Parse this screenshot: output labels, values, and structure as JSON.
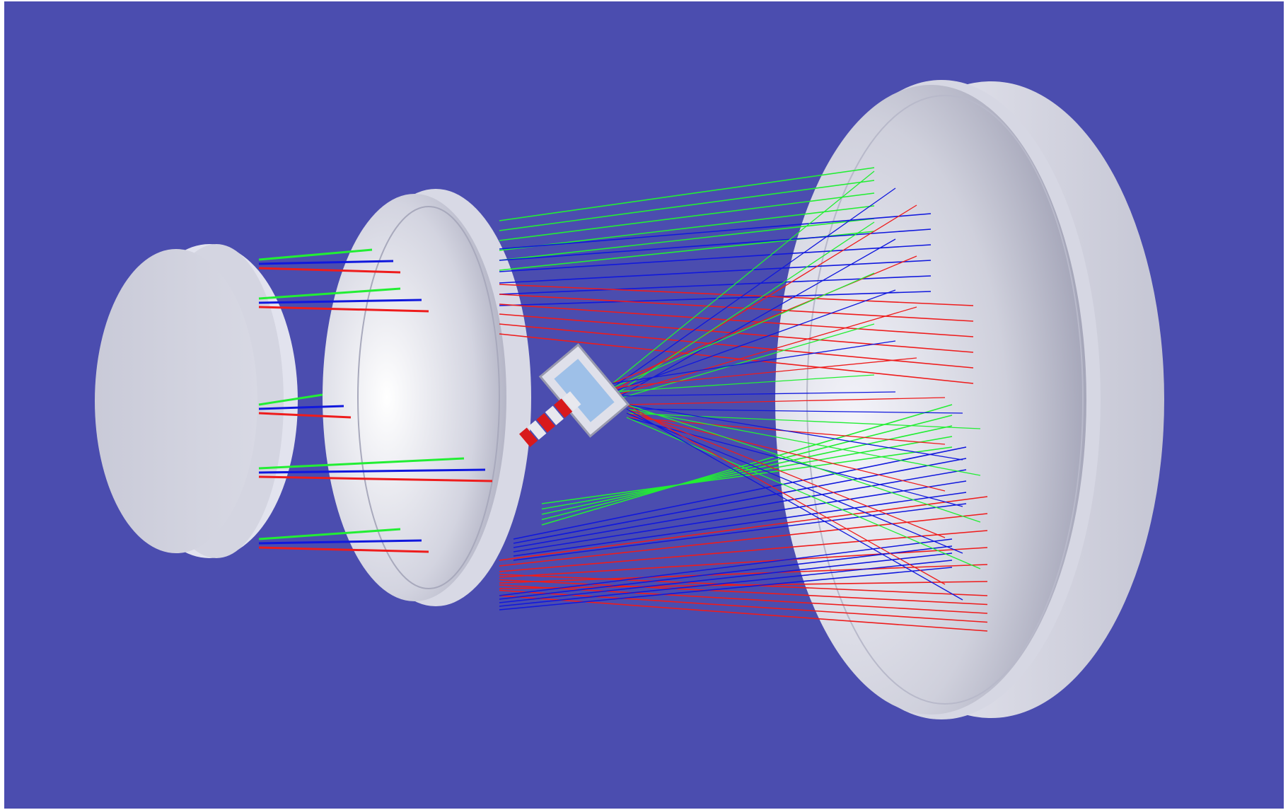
{
  "scene": {
    "background_color": "#4b4daf",
    "frame_color": "#ffffff",
    "mirror_color": "#cfd0dc",
    "mirror_rim_color": "#dcdde8",
    "mirror_shadow_color": "#8e8fa6",
    "ray_colors": {
      "green": "#22ee33",
      "blue": "#1018dd",
      "red": "#ee1c1c"
    },
    "components": [
      {
        "id": "primary-mirror",
        "icon": "large-concave-mirror-icon"
      },
      {
        "id": "secondary-mirror",
        "icon": "medium-concave-mirror-icon"
      },
      {
        "id": "tertiary-mirror",
        "icon": "flat-disc-mirror-icon"
      },
      {
        "id": "detector-assembly",
        "icon": "striped-detector-icon"
      }
    ]
  }
}
